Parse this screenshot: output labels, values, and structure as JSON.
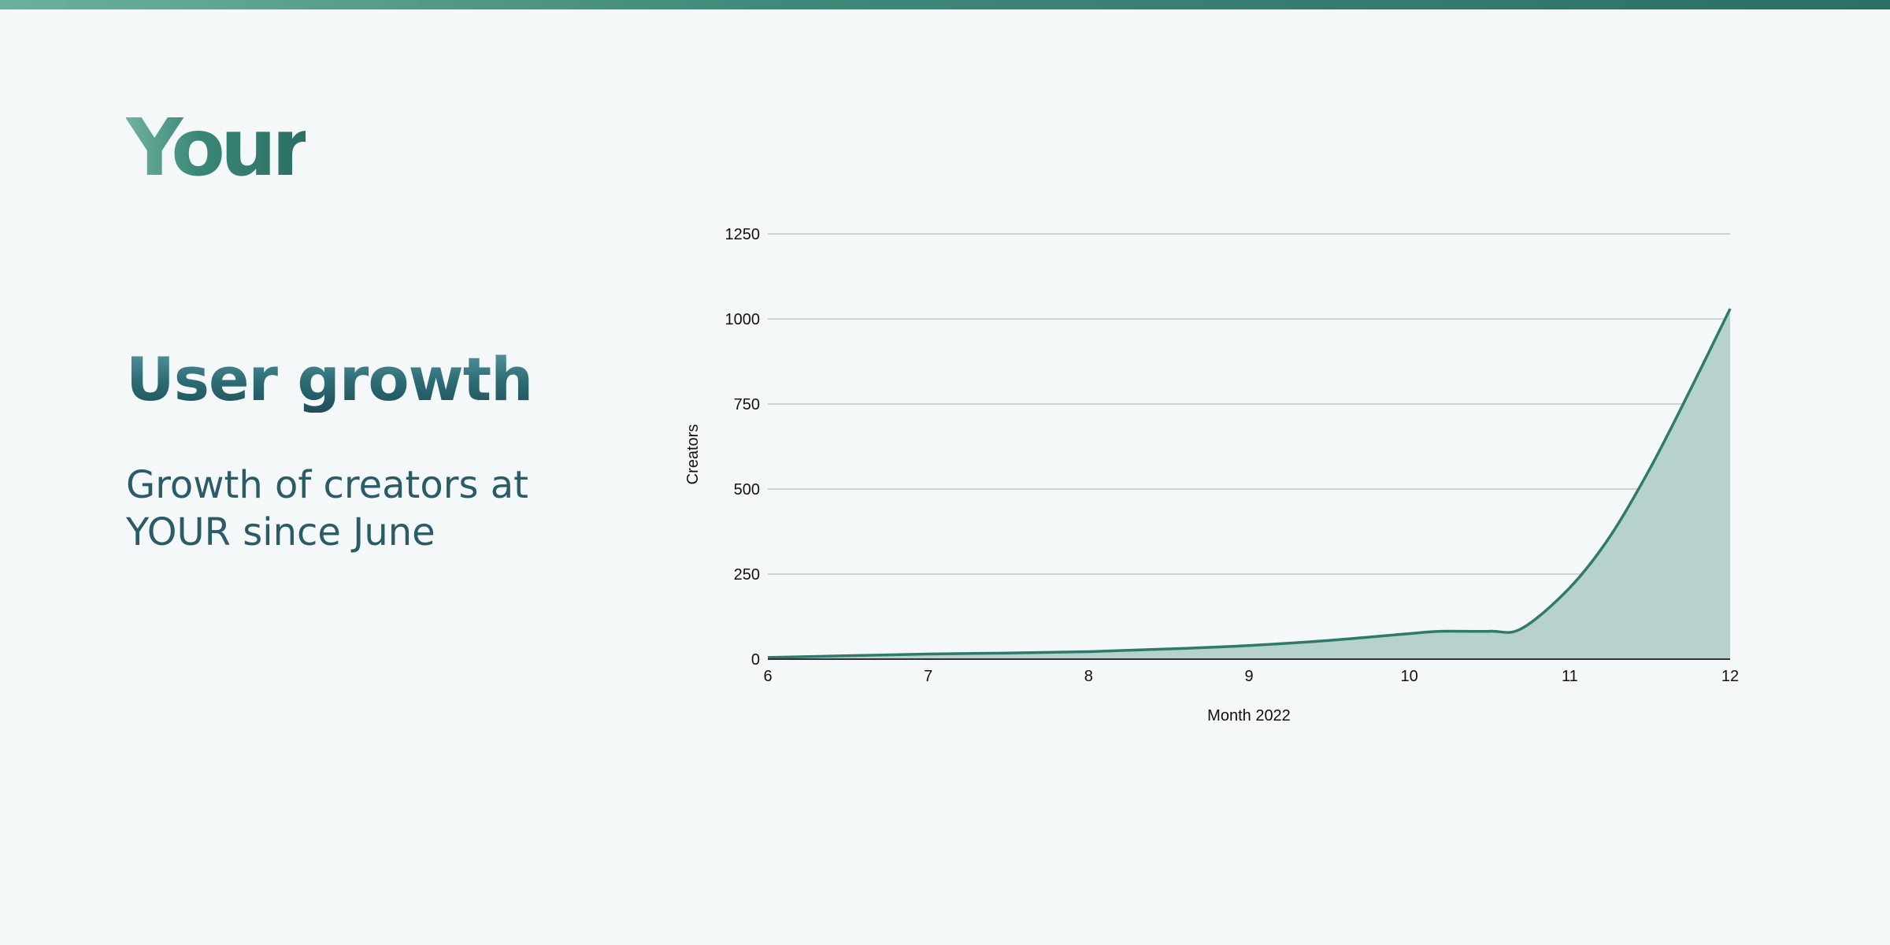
{
  "logo": {
    "text": "Your"
  },
  "heading": {
    "title": "User growth",
    "subtitle": "Growth of creators at YOUR since June"
  },
  "colors": {
    "accent": "#2e7a6b",
    "fill": "#b7d2cd",
    "grid": "#cdd3d3",
    "background": "#f4f8f8"
  },
  "chart_data": {
    "type": "area",
    "title": "",
    "xlabel": "Month 2022",
    "ylabel": "Creators",
    "x": [
      6,
      6.5,
      7,
      7.5,
      8,
      8.5,
      9,
      9.5,
      10,
      10.2,
      10.5,
      10.7,
      11,
      11.25,
      11.5,
      11.75,
      12
    ],
    "y": [
      5,
      10,
      15,
      18,
      22,
      30,
      40,
      55,
      75,
      82,
      82,
      90,
      210,
      360,
      560,
      790,
      1030
    ],
    "xlim": [
      6,
      12
    ],
    "ylim": [
      0,
      1250
    ],
    "x_ticks": [
      6,
      7,
      8,
      9,
      10,
      11,
      12
    ],
    "y_ticks": [
      0,
      250,
      500,
      750,
      1000,
      1250
    ],
    "grid": true,
    "legend": "none"
  }
}
